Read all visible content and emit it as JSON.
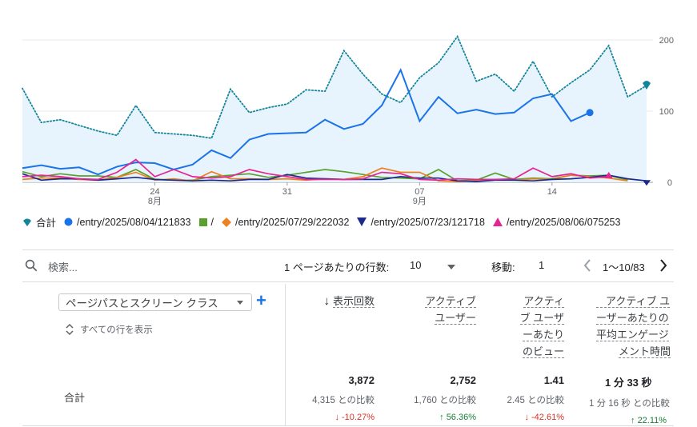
{
  "chart_data": {
    "type": "line",
    "x_tick_labels": [
      "24",
      "31",
      "07",
      "14"
    ],
    "x_month_labels": [
      "8月",
      "9月"
    ],
    "y_ticks": [
      0,
      100,
      200
    ],
    "ylim": [
      0,
      200
    ],
    "grid": true,
    "legend_position": "bottom",
    "series": [
      {
        "name": "合計",
        "color": "#1a73e8",
        "style": "dotted-area",
        "values": [
          132,
          84,
          88,
          80,
          72,
          66,
          108,
          70,
          68,
          66,
          62,
          131,
          98,
          105,
          110,
          130,
          128,
          185,
          152,
          124,
          112,
          147,
          168,
          205,
          142,
          152,
          128,
          170,
          120,
          140,
          158,
          192,
          120,
          136
        ]
      },
      {
        "name": "/entry/2025/08/04/121833",
        "color": "#1a73e8",
        "style": "solid",
        "values": [
          20,
          24,
          19,
          21,
          11,
          22,
          28,
          27,
          18,
          25,
          45,
          34,
          60,
          68,
          69,
          70,
          88,
          75,
          82,
          108,
          158,
          86,
          120,
          97,
          102,
          96,
          98,
          118,
          124,
          86,
          98
        ]
      },
      {
        "name": "/",
        "color": "#5aa02c",
        "style": "solid",
        "values": [
          15,
          8,
          12,
          9,
          9,
          7,
          18,
          4,
          3,
          3,
          8,
          10,
          12,
          7,
          10,
          14,
          18,
          15,
          11,
          7,
          6,
          5,
          18,
          2,
          3,
          13,
          4,
          6,
          5,
          10,
          9,
          10,
          3
        ]
      },
      {
        "name": "/entry/2025/07/29/222032",
        "color": "#ed8021",
        "style": "solid",
        "values": [
          4,
          6,
          6,
          4,
          3,
          7,
          14,
          3,
          5,
          2,
          15,
          5,
          5,
          4,
          5,
          3,
          5,
          4,
          8,
          20,
          14,
          14,
          2,
          1,
          2,
          4,
          3,
          5,
          4,
          10,
          8,
          6,
          2
        ]
      },
      {
        "name": "/entry/2025/07/23/121718",
        "color": "#1c2a8c",
        "style": "solid",
        "values": [
          12,
          3,
          5,
          5,
          3,
          5,
          7,
          4,
          3,
          2,
          3,
          2,
          4,
          4,
          11,
          6,
          5,
          4,
          4,
          4,
          8,
          6,
          6,
          2,
          1,
          3,
          3,
          2,
          4,
          5,
          7,
          10,
          5,
          2
        ]
      },
      {
        "name": "/entry/2025/08/06/075253",
        "color": "#e52592",
        "style": "solid",
        "values": [
          8,
          10,
          8,
          5,
          4,
          14,
          32,
          8,
          18,
          8,
          6,
          8,
          18,
          12,
          8,
          4,
          4,
          4,
          5,
          14,
          12,
          4,
          3,
          5,
          4,
          4,
          5,
          20,
          8,
          12,
          6,
          8
        ]
      }
    ]
  },
  "search": {
    "placeholder": "検索..."
  },
  "pagination": {
    "rows_label": "1 ページあたりの行数:",
    "rows_value": "10",
    "goto_label": "移動:",
    "goto_value": "1",
    "range": "1〜10/83"
  },
  "table": {
    "dimension": "ページパスとスクリーン クラス",
    "show_all": "すべての行を表示",
    "total_label": "合計",
    "columns": [
      {
        "header": [
          "表示回数"
        ],
        "sorted": true,
        "value": "3,872",
        "compare": "4,315 との比較",
        "delta": "-10.27%",
        "dir": "down"
      },
      {
        "header": [
          "アクティブ",
          "ユーザー"
        ],
        "value": "2,752",
        "compare": "1,760 との比較",
        "delta": "56.36%",
        "dir": "up"
      },
      {
        "header": [
          "アクティ",
          "ブ ユーザ",
          "ーあたり",
          "のビュー"
        ],
        "value": "1.41",
        "compare": "2.45 との比較",
        "delta": "-42.61%",
        "dir": "down"
      },
      {
        "header": [
          "アクティブ ユ",
          "ーザーあたりの",
          "平均エンゲージ",
          "メント時間"
        ],
        "value": "1 分 33 秒",
        "compare": "1 分 16 秒 との比較",
        "delta": "22.11%",
        "dir": "up"
      }
    ]
  }
}
